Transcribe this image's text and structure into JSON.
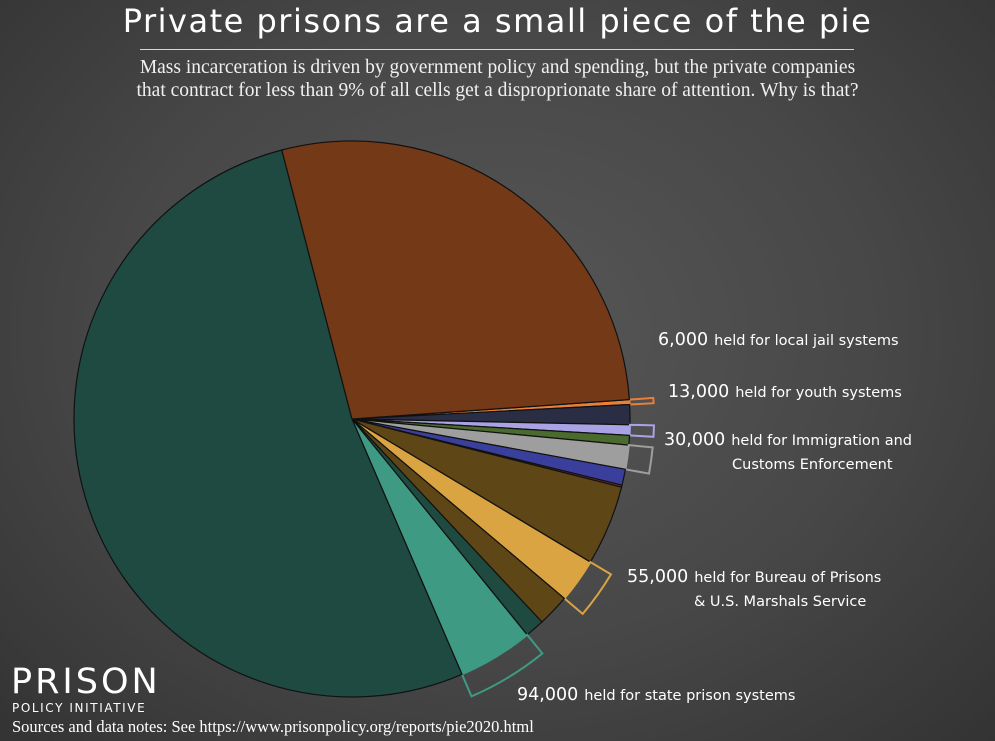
{
  "title": "Private prisons are a small piece of the pie",
  "subtitle_line1": "Mass incarceration is driven by government policy and spending, but the private companies",
  "subtitle_line2": "that contract for less than 9% of all cells get a disproprionate share of attention. Why is that?",
  "logo": {
    "main": "PRISON",
    "sub": "POLICY INITIATIVE"
  },
  "sources": "Sources and data notes: See https://www.prisonpolicy.org/reports/pie2020.html",
  "chart_data": {
    "type": "pie",
    "start_angle_deg": -4,
    "direction": "clockwise",
    "slices": [
      {
        "value": 6000,
        "color": "#e8803a",
        "highlight": true,
        "label_number": "6,000",
        "label_line1": "held for local jail systems"
      },
      {
        "value": 25000,
        "color": "#2a2e45"
      },
      {
        "value": 13000,
        "color": "#a9a3e6",
        "highlight": true,
        "label_number": "13,000",
        "label_line1": "held for youth systems"
      },
      {
        "value": 12000,
        "color": "#4a6a2e"
      },
      {
        "value": 30000,
        "color": "#9e9e9e",
        "highlight": true,
        "label_number": "30,000",
        "label_line1": "held for Immigration and",
        "label_line2": "Customs Enforcement"
      },
      {
        "value": 20000,
        "color": "#3b3f9c"
      },
      {
        "value": 2500,
        "color": "#7a2b2b"
      },
      {
        "value": 100000,
        "color": "#5e4617"
      },
      {
        "value": 55000,
        "color": "#d9a441",
        "highlight": true,
        "label_number": "55,000",
        "label_line1": "held for Bureau of Prisons",
        "label_line2": "& U.S. Marshals Service"
      },
      {
        "value": 40000,
        "color": "#5e4617"
      },
      {
        "value": 24000,
        "color": "#1f4a40"
      },
      {
        "value": 94000,
        "color": "#3e9a83",
        "highlight": true,
        "label_number": "94,000",
        "label_line1": "held for state prison systems"
      },
      {
        "value": 1125000,
        "color": "#1e4a42"
      },
      {
        "value": 600000,
        "color": "#743a18"
      }
    ]
  }
}
